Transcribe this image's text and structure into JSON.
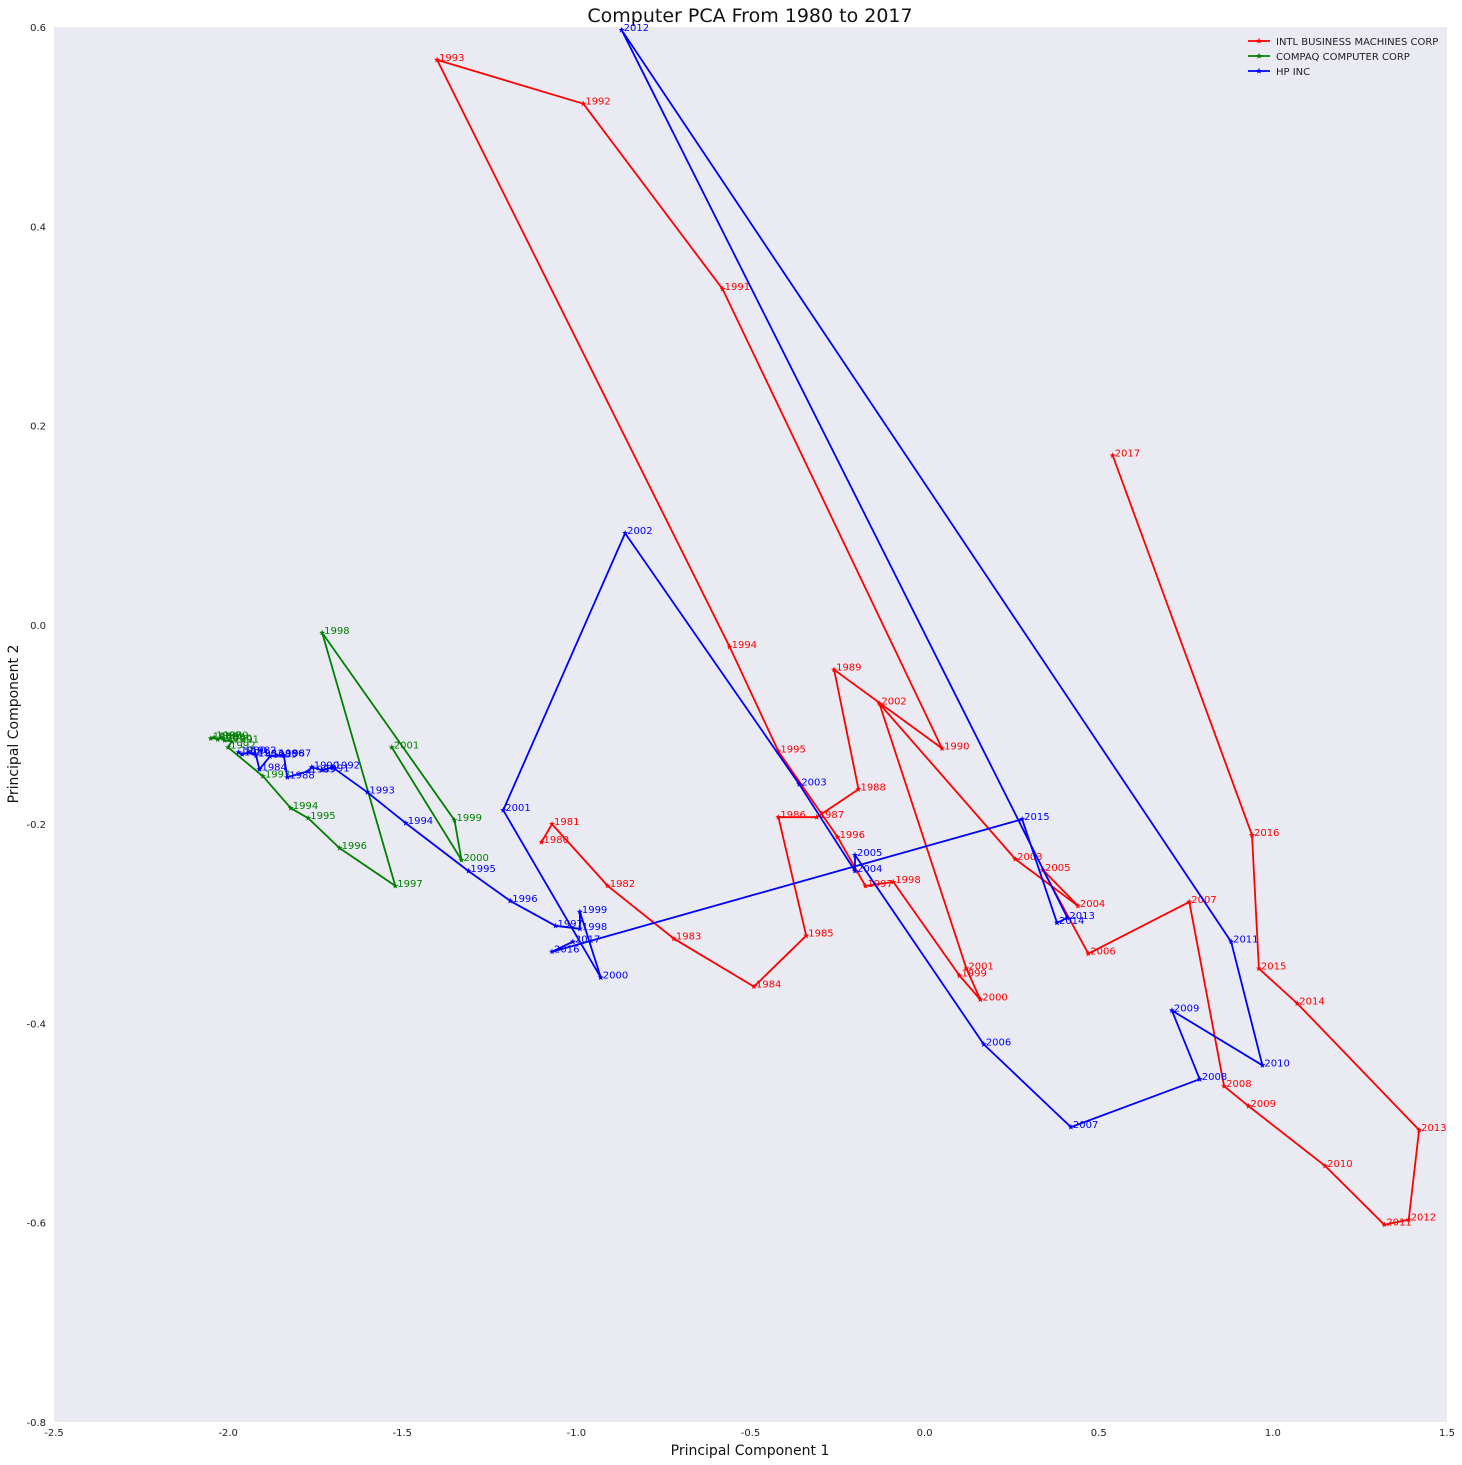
{
  "chart_data": {
    "type": "line",
    "title": "Computer PCA From 1980 to 2017",
    "xlabel": "Principal Component 1",
    "ylabel": "Principal Component 2",
    "xlim": [
      -2.5,
      1.5
    ],
    "ylim": [
      -0.8,
      0.6
    ],
    "xticks": [
      "-2.5",
      "-2.0",
      "-1.5",
      "-1.0",
      "-0.5",
      "0.0",
      "0.5",
      "1.0",
      "1.5"
    ],
    "xtick_values": [
      -2.5,
      -2.0,
      -1.5,
      -1.0,
      -0.5,
      0.0,
      0.5,
      1.0,
      1.5
    ],
    "yticks": [
      "0.6",
      "0.4",
      "0.2",
      "0.0",
      "-0.2",
      "-0.4",
      "-0.6",
      "-0.8"
    ],
    "ytick_values": [
      0.6,
      0.4,
      0.2,
      0.0,
      -0.2,
      -0.4,
      -0.6,
      -0.8
    ],
    "grid": false,
    "background": "#eaeaf2",
    "legend": "top-right",
    "marker": "star",
    "series": [
      {
        "name": "INTL BUSINESS MACHINES CORP",
        "color": "#ff0000",
        "points": [
          {
            "label": "1980",
            "x": -1.1,
            "y": -0.218
          },
          {
            "label": "1981",
            "x": -1.07,
            "y": -0.2
          },
          {
            "label": "1982",
            "x": -0.91,
            "y": -0.262
          },
          {
            "label": "1983",
            "x": -0.72,
            "y": -0.315
          },
          {
            "label": "1984",
            "x": -0.49,
            "y": -0.363
          },
          {
            "label": "1985",
            "x": -0.34,
            "y": -0.312
          },
          {
            "label": "1986",
            "x": -0.42,
            "y": -0.193
          },
          {
            "label": "1987",
            "x": -0.31,
            "y": -0.193
          },
          {
            "label": "1988",
            "x": -0.19,
            "y": -0.165
          },
          {
            "label": "1989",
            "x": -0.26,
            "y": -0.045
          },
          {
            "label": "1990",
            "x": 0.05,
            "y": -0.124
          },
          {
            "label": "1991",
            "x": -0.58,
            "y": 0.337
          },
          {
            "label": "1992",
            "x": -0.98,
            "y": 0.523
          },
          {
            "label": "1993",
            "x": -1.4,
            "y": 0.567
          },
          {
            "label": "1994",
            "x": -0.56,
            "y": -0.022
          },
          {
            "label": "1995",
            "x": -0.42,
            "y": -0.127
          },
          {
            "label": "1996",
            "x": -0.25,
            "y": -0.213
          },
          {
            "label": "1997",
            "x": -0.17,
            "y": -0.262
          },
          {
            "label": "1998",
            "x": -0.09,
            "y": -0.258
          },
          {
            "label": "1999",
            "x": 0.1,
            "y": -0.352
          },
          {
            "label": "2000",
            "x": 0.16,
            "y": -0.376
          },
          {
            "label": "2001",
            "x": 0.12,
            "y": -0.345
          },
          {
            "label": "2002",
            "x": -0.13,
            "y": -0.079
          },
          {
            "label": "2003",
            "x": 0.26,
            "y": -0.235
          },
          {
            "label": "2004",
            "x": 0.44,
            "y": -0.282
          },
          {
            "label": "2005",
            "x": 0.34,
            "y": -0.246
          },
          {
            "label": "2006",
            "x": 0.47,
            "y": -0.33
          },
          {
            "label": "2007",
            "x": 0.76,
            "y": -0.278
          },
          {
            "label": "2008",
            "x": 0.86,
            "y": -0.463
          },
          {
            "label": "2009",
            "x": 0.93,
            "y": -0.483
          },
          {
            "label": "2010",
            "x": 1.15,
            "y": -0.543
          },
          {
            "label": "2011",
            "x": 1.32,
            "y": -0.602
          },
          {
            "label": "2012",
            "x": 1.39,
            "y": -0.597
          },
          {
            "label": "2013",
            "x": 1.42,
            "y": -0.507
          },
          {
            "label": "2014",
            "x": 1.07,
            "y": -0.38
          },
          {
            "label": "2015",
            "x": 0.96,
            "y": -0.345
          },
          {
            "label": "2016",
            "x": 0.94,
            "y": -0.211
          },
          {
            "label": "2017",
            "x": 0.54,
            "y": 0.17
          }
        ]
      },
      {
        "name": "COMPAQ COMPUTER CORP",
        "color": "#008000",
        "points": [
          {
            "label": "1986",
            "x": -2.05,
            "y": -0.114
          },
          {
            "label": "1987",
            "x": -2.04,
            "y": -0.113
          },
          {
            "label": "1988",
            "x": -2.03,
            "y": -0.115
          },
          {
            "label": "1989",
            "x": -2.02,
            "y": -0.113
          },
          {
            "label": "1990",
            "x": -2.01,
            "y": -0.116
          },
          {
            "label": "1991",
            "x": -1.99,
            "y": -0.117
          },
          {
            "label": "1992",
            "x": -2.0,
            "y": -0.123
          },
          {
            "label": "1993",
            "x": -1.9,
            "y": -0.152
          },
          {
            "label": "1994",
            "x": -1.82,
            "y": -0.184
          },
          {
            "label": "1995",
            "x": -1.77,
            "y": -0.194
          },
          {
            "label": "1996",
            "x": -1.68,
            "y": -0.224
          },
          {
            "label": "1997",
            "x": -1.52,
            "y": -0.262
          },
          {
            "label": "1998",
            "x": -1.73,
            "y": -0.008
          },
          {
            "label": "1999",
            "x": -1.35,
            "y": -0.196
          },
          {
            "label": "2000",
            "x": -1.33,
            "y": -0.236
          },
          {
            "label": "2001",
            "x": -1.53,
            "y": -0.123
          }
        ]
      },
      {
        "name": "HP INC",
        "color": "#0000ff",
        "points": [
          {
            "label": "1980",
            "x": -1.97,
            "y": -0.128
          },
          {
            "label": "1981",
            "x": -1.96,
            "y": -0.13
          },
          {
            "label": "1982",
            "x": -1.94,
            "y": -0.128
          },
          {
            "label": "1983",
            "x": -1.92,
            "y": -0.131
          },
          {
            "label": "1984",
            "x": -1.91,
            "y": -0.145
          },
          {
            "label": "1985",
            "x": -1.88,
            "y": -0.132
          },
          {
            "label": "1986",
            "x": -1.86,
            "y": -0.131
          },
          {
            "label": "1987",
            "x": -1.84,
            "y": -0.131
          },
          {
            "label": "1988",
            "x": -1.83,
            "y": -0.153
          },
          {
            "label": "1989",
            "x": -1.77,
            "y": -0.147
          },
          {
            "label": "1990",
            "x": -1.76,
            "y": -0.143
          },
          {
            "label": "1991",
            "x": -1.73,
            "y": -0.146
          },
          {
            "label": "1992",
            "x": -1.7,
            "y": -0.143
          },
          {
            "label": "1993",
            "x": -1.6,
            "y": -0.168
          },
          {
            "label": "1994",
            "x": -1.49,
            "y": -0.199
          },
          {
            "label": "1995",
            "x": -1.31,
            "y": -0.247
          },
          {
            "label": "1996",
            "x": -1.19,
            "y": -0.277
          },
          {
            "label": "1997",
            "x": -1.06,
            "y": -0.302
          },
          {
            "label": "1998",
            "x": -0.99,
            "y": -0.305
          },
          {
            "label": "1999",
            "x": -0.99,
            "y": -0.288
          },
          {
            "label": "2000",
            "x": -0.93,
            "y": -0.354
          },
          {
            "label": "2001",
            "x": -1.21,
            "y": -0.186
          },
          {
            "label": "2002",
            "x": -0.86,
            "y": 0.092
          },
          {
            "label": "2003",
            "x": -0.36,
            "y": -0.16
          },
          {
            "label": "2004",
            "x": -0.2,
            "y": -0.247
          },
          {
            "label": "2005",
            "x": -0.2,
            "y": -0.231
          },
          {
            "label": "2006",
            "x": 0.17,
            "y": -0.421
          },
          {
            "label": "2007",
            "x": 0.42,
            "y": -0.504
          },
          {
            "label": "2008",
            "x": 0.79,
            "y": -0.456
          },
          {
            "label": "2009",
            "x": 0.71,
            "y": -0.387
          },
          {
            "label": "2010",
            "x": 0.97,
            "y": -0.442
          },
          {
            "label": "2011",
            "x": 0.88,
            "y": -0.318
          },
          {
            "label": "2012",
            "x": -0.87,
            "y": 0.597
          },
          {
            "label": "2013",
            "x": 0.41,
            "y": -0.294
          },
          {
            "label": "2014",
            "x": 0.38,
            "y": -0.299
          },
          {
            "label": "2015",
            "x": 0.28,
            "y": -0.195
          },
          {
            "label": "2016",
            "x": -1.07,
            "y": -0.328
          },
          {
            "label": "2017",
            "x": -1.01,
            "y": -0.318
          }
        ]
      }
    ]
  }
}
